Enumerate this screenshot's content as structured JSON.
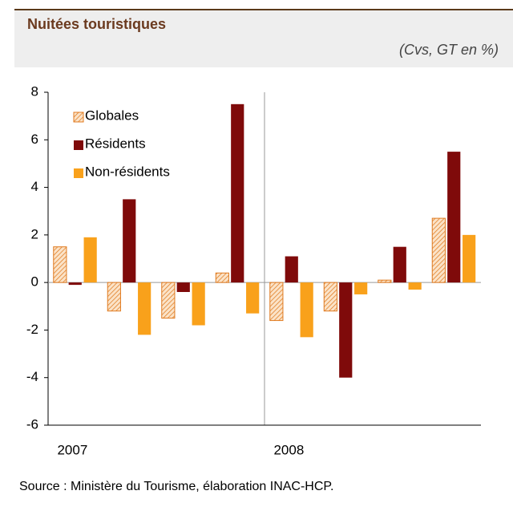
{
  "chart_data": {
    "type": "bar",
    "title": "Nuitées touristiques",
    "subtitle": "(Cvs, GT en %)",
    "categories": [
      "2007",
      null,
      null,
      null,
      "2008",
      null,
      null,
      null
    ],
    "series": [
      {
        "name": "Globales",
        "color": "#e07b20",
        "hatch": true,
        "values": [
          1.5,
          -1.2,
          -1.5,
          0.4,
          -1.6,
          -1.2,
          0.1,
          2.7
        ]
      },
      {
        "name": "Résidents",
        "color": "#7f0a0a",
        "values": [
          -0.1,
          3.5,
          -0.4,
          7.5,
          1.1,
          -4.0,
          1.5,
          5.5
        ]
      },
      {
        "name": "Non-résidents",
        "color": "#f9a11b",
        "values": [
          1.9,
          -2.2,
          -1.8,
          -1.3,
          -2.3,
          -0.5,
          -0.3,
          2.0
        ]
      }
    ],
    "ylim": [
      -6,
      8
    ],
    "yticks": [
      -6,
      -4,
      -2,
      0,
      2,
      4,
      6,
      8
    ],
    "legend": "upper-left",
    "source": "Source : Ministère du Tourisme, élaboration INAC-HCP."
  }
}
